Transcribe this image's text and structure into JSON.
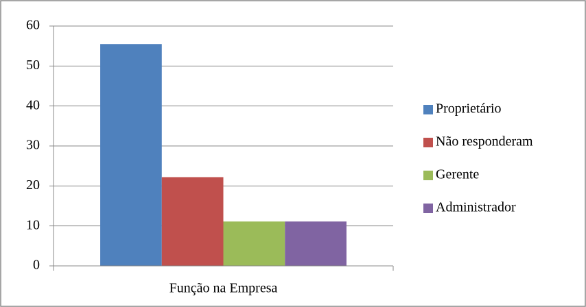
{
  "chart_data": {
    "type": "bar",
    "categories": [
      "Função na Empresa"
    ],
    "series": [
      {
        "name": "Proprietário",
        "color": "#4f81bd",
        "values": [
          55.5
        ]
      },
      {
        "name": "Não responderam",
        "color": "#c0504d",
        "values": [
          22.2
        ]
      },
      {
        "name": "Gerente",
        "color": "#9bbb59",
        "values": [
          11.1
        ]
      },
      {
        "name": "Administrador",
        "color": "#8064a2",
        "values": [
          11.1
        ]
      }
    ],
    "ylim": [
      0,
      60
    ],
    "yticks": [
      0,
      10,
      20,
      30,
      40,
      50,
      60
    ],
    "grid": true,
    "legend": "right"
  }
}
